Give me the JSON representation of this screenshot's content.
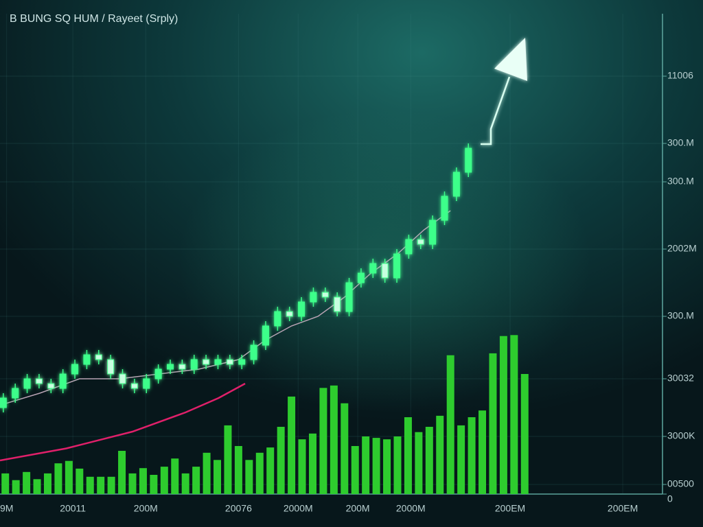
{
  "chart_data": {
    "type": "candlestick",
    "title": "B BUNG SQ HUM / Rayeet (Srply)",
    "xlim": [
      0,
      100
    ],
    "ylim": [
      0,
      100
    ],
    "grid": true,
    "xticks": [
      {
        "value": 1,
        "label": "9M"
      },
      {
        "value": 11,
        "label": "20011"
      },
      {
        "value": 22,
        "label": "200M"
      },
      {
        "value": 36,
        "label": "20076"
      },
      {
        "value": 45,
        "label": "2000M"
      },
      {
        "value": 54,
        "label": "200M"
      },
      {
        "value": 62,
        "label": "2000M"
      },
      {
        "value": 77,
        "label": "200EM"
      },
      {
        "value": 94,
        "label": "200EM"
      }
    ],
    "yticks": [
      {
        "value": 87,
        "label": "11006"
      },
      {
        "value": 73,
        "label": "300.M"
      },
      {
        "value": 65,
        "label": "300.M"
      },
      {
        "value": 51,
        "label": "2002M"
      },
      {
        "value": 37,
        "label": "300.M"
      },
      {
        "value": 24,
        "label": "30032"
      },
      {
        "value": 12,
        "label": "3000K"
      },
      {
        "value": 2,
        "label": "00500"
      },
      0
    ],
    "candles": {
      "color": "#3dff8a",
      "x": [
        0.5,
        2.3,
        4.1,
        5.9,
        7.7,
        9.5,
        11.3,
        13.1,
        14.9,
        16.7,
        18.5,
        20.3,
        22.1,
        23.9,
        25.7,
        27.5,
        29.3,
        31.1,
        32.9,
        34.7,
        36.5,
        38.3,
        40.1,
        41.9,
        43.7,
        45.5,
        47.3,
        49.1,
        50.9,
        52.7,
        54.5,
        56.3,
        58.1,
        59.9,
        61.7,
        63.5,
        65.3,
        67.1,
        68.9,
        70.7
      ],
      "open": [
        18,
        20,
        22,
        24,
        23,
        22,
        25,
        27,
        29,
        28,
        25,
        23,
        22,
        24,
        26,
        27,
        26,
        28,
        27,
        28,
        27,
        28,
        31,
        35,
        38,
        37,
        40,
        42,
        41,
        38,
        44,
        46,
        48,
        45,
        50,
        53,
        52,
        57,
        62,
        67
      ],
      "high": [
        21,
        23,
        25,
        25,
        24,
        26,
        28,
        30,
        30,
        29,
        26,
        24,
        25,
        27,
        28,
        28,
        29,
        29,
        29,
        29,
        29,
        32,
        36,
        39,
        39,
        41,
        43,
        43,
        42,
        45,
        47,
        49,
        49,
        51,
        54,
        54,
        58,
        63,
        68,
        73
      ],
      "low": [
        17,
        19,
        21,
        22,
        21,
        21,
        24,
        26,
        27,
        24,
        22,
        21,
        21,
        23,
        25,
        25,
        25,
        26,
        26,
        26,
        26,
        27,
        30,
        34,
        36,
        36,
        39,
        40,
        37,
        37,
        43,
        45,
        44,
        44,
        49,
        51,
        51,
        56,
        61,
        66
      ],
      "close": [
        20,
        22,
        24,
        23,
        22,
        25,
        27,
        29,
        28,
        25,
        23,
        22,
        24,
        26,
        27,
        26,
        28,
        27,
        28,
        27,
        28,
        31,
        35,
        38,
        37,
        40,
        42,
        41,
        38,
        44,
        46,
        48,
        45,
        50,
        53,
        52,
        57,
        62,
        67,
        72
      ]
    },
    "volume": {
      "color": "#2ecc2e",
      "x": [
        0.8,
        2.4,
        4,
        5.6,
        7.2,
        8.8,
        10.4,
        12,
        13.6,
        15.2,
        16.8,
        18.4,
        20,
        21.6,
        23.2,
        24.8,
        26.4,
        28,
        29.6,
        31.2,
        32.8,
        34.4,
        36,
        37.6,
        39.2,
        40.8,
        42.4,
        44,
        45.6,
        47.2,
        48.8,
        50.4,
        52,
        53.6,
        55.2,
        56.8,
        58.4,
        60,
        61.6,
        63.2,
        64.8,
        66.4,
        68,
        69.6,
        71.2,
        72.8,
        74.4,
        76,
        77.6,
        79.2
      ],
      "values": [
        4.3,
        2.9,
        4.6,
        3.1,
        4.3,
        6.4,
        6.9,
        5.3,
        3.6,
        3.6,
        3.6,
        9.0,
        4.3,
        5.4,
        4.0,
        5.7,
        7.4,
        4.3,
        5.7,
        8.6,
        7.1,
        14.3,
        10,
        7.1,
        8.6,
        9.7,
        14,
        20.3,
        11.4,
        12.6,
        22.1,
        22.6,
        18.9,
        10,
        12,
        11.7,
        11.4,
        12,
        16,
        12.9,
        14,
        16.3,
        28.9,
        14.3,
        16,
        17.4,
        29.3,
        32.9,
        33.1,
        25
      ]
    },
    "lines": [
      {
        "color": "#b9a3b4",
        "x": [
          0,
          6,
          12,
          18,
          24,
          30,
          36,
          40,
          44,
          48,
          52,
          56,
          60,
          64,
          68
        ],
        "values": [
          18.5,
          21,
          24,
          24,
          25,
          26,
          28,
          32,
          35,
          37,
          41,
          46,
          50,
          55,
          59
        ]
      },
      {
        "color": "#e0206a",
        "x": [
          0,
          10,
          20,
          28,
          33,
          37
        ],
        "values": [
          7,
          9.5,
          13,
          17,
          20,
          23
        ]
      }
    ]
  }
}
